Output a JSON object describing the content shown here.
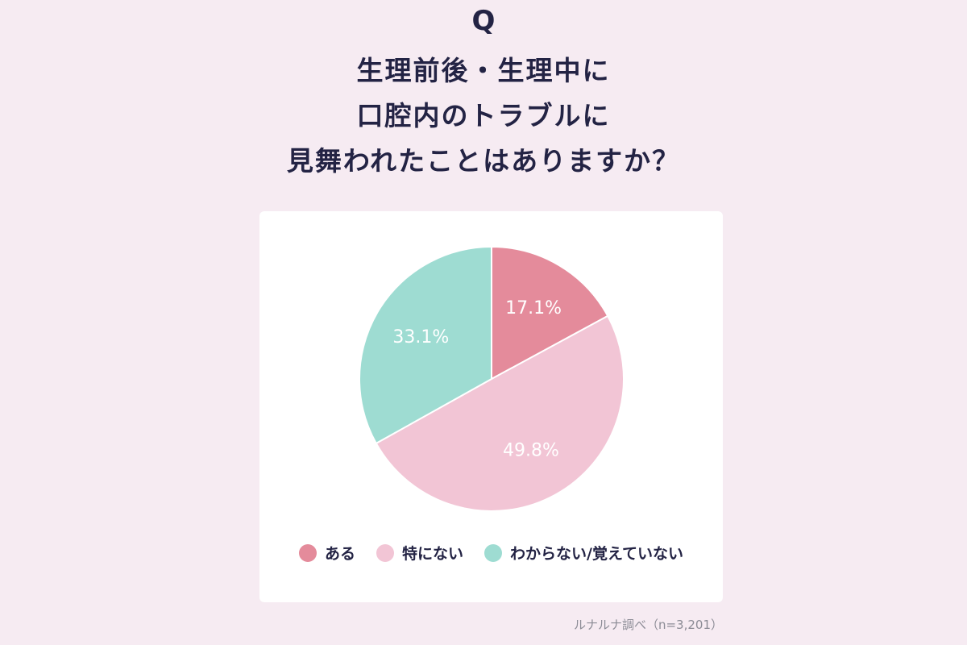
{
  "header": {
    "q_mark": "Q",
    "question_lines": [
      "生理前後・生理中に",
      "口腔内のトラブルに",
      "見舞われたことはありますか？"
    ]
  },
  "colors": {
    "background": "#f6ebf2",
    "text": "#232344",
    "aru": "#e48b9b",
    "tokuninai": "#f2c5d5",
    "wakaranai": "#9edcd2"
  },
  "chart_data": {
    "type": "pie",
    "title": "生理前後・生理中に口腔内のトラブルに見舞われたことはありますか？",
    "slices": [
      {
        "label": "ある",
        "value": 17.1,
        "value_label": "17.1%",
        "color": "#e48b9b"
      },
      {
        "label": "特にない",
        "value": 49.8,
        "value_label": "49.8%",
        "color": "#f2c5d5"
      },
      {
        "label": "わからない/覚えていない",
        "value": 33.1,
        "value_label": "33.1%",
        "color": "#9edcd2"
      }
    ],
    "legend_position": "bottom",
    "start_angle": "12 o'clock, clockwise"
  },
  "source": "ルナルナ調べ（n=3,201）"
}
